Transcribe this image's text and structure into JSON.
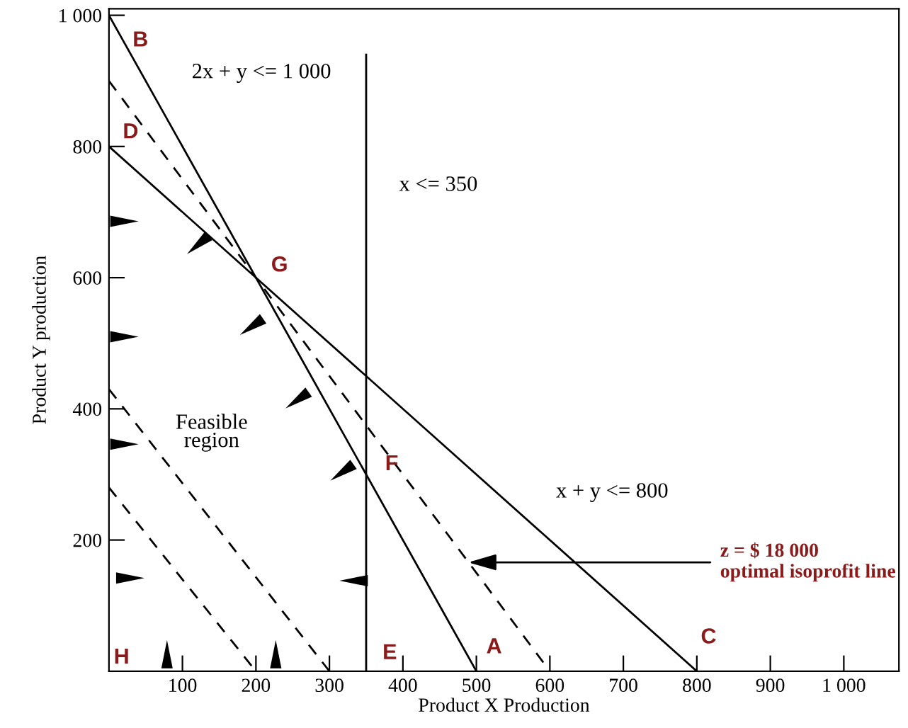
{
  "chart_data": {
    "type": "line",
    "xlabel": "Product X Production",
    "ylabel": "Product Y production",
    "xlim": [
      0,
      1075
    ],
    "ylim": [
      0,
      1010
    ],
    "xticks": [
      100,
      200,
      300,
      400,
      500,
      600,
      700,
      800,
      900,
      {
        "value": 1000,
        "label": "1 000"
      }
    ],
    "yticks": [
      200,
      400,
      600,
      800,
      {
        "value": 1000,
        "label": "1 000"
      }
    ],
    "grid": false,
    "legend": false,
    "marker": "none",
    "series": [
      {
        "x": [
          0,
          500
        ],
        "values": [
          1000,
          0
        ],
        "color": "#000000",
        "line_style": "solid"
      },
      {
        "x": [
          0,
          800
        ],
        "values": [
          800,
          0
        ],
        "color": "#000000",
        "line_style": "solid"
      },
      {
        "x": [
          350,
          350
        ],
        "values": [
          0,
          940
        ],
        "color": "#000000",
        "line_style": "solid"
      },
      {
        "x": [
          0,
          600
        ],
        "values": [
          900,
          0
        ],
        "color": "#000000",
        "line_style": "dashed"
      },
      {
        "x": [
          0,
          300
        ],
        "values": [
          430,
          0
        ],
        "color": "#000000",
        "line_style": "dashed"
      },
      {
        "x": [
          0,
          200
        ],
        "values": [
          280,
          0
        ],
        "color": "#000000",
        "line_style": "dashed"
      }
    ],
    "annotations": [
      {
        "text": "B",
        "x": 0,
        "y": 1000
      },
      {
        "text": "D",
        "x": 0,
        "y": 800
      },
      {
        "text": "G",
        "x": 200,
        "y": 600
      },
      {
        "text": "F",
        "x": 350,
        "y": 300
      },
      {
        "text": "E",
        "x": 350,
        "y": 0
      },
      {
        "text": "A",
        "x": 500,
        "y": 0
      },
      {
        "text": "C",
        "x": 800,
        "y": 0
      },
      "H",
      "2x + y <= 1 000",
      "x <= 350",
      "x + y <= 800",
      "Feasible\nregion",
      {
        "text": "z = $ 18 000\noptimal isoprofit line",
        "x": 489,
        "y": 166
      }
    ]
  }
}
